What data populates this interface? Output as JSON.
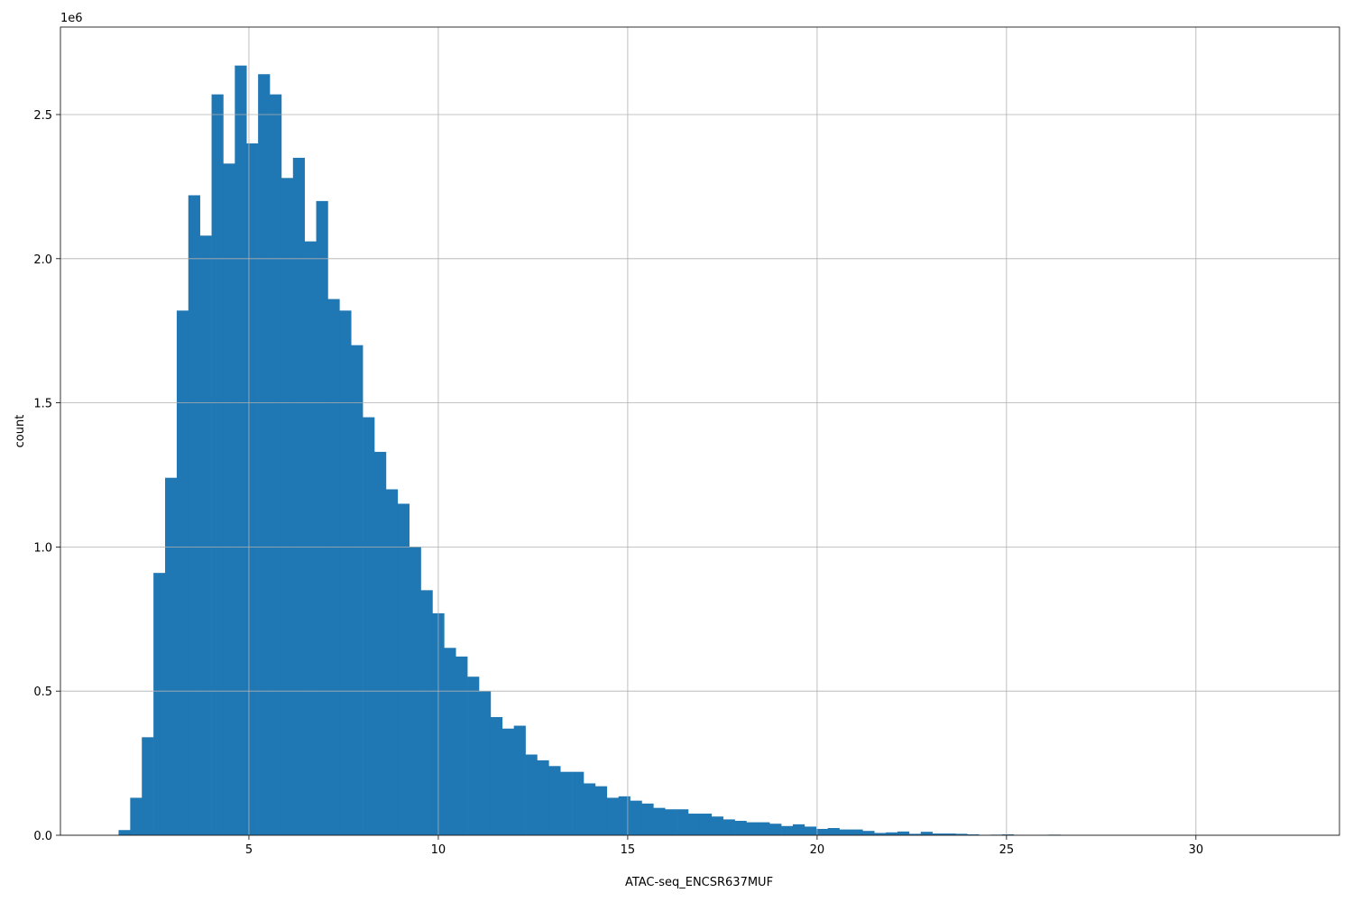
{
  "chart_data": {
    "type": "histogram",
    "xlabel": "ATAC-seq_ENCSR637MUF",
    "ylabel": "count",
    "y_offset_label": "1e6",
    "color": "#1f77b4",
    "grid": true,
    "bins": [
      1.559,
      1.866,
      2.173,
      2.48,
      2.787,
      3.094,
      3.4,
      3.707,
      4.014,
      4.321,
      4.628,
      4.935,
      5.242,
      5.549,
      5.856,
      6.163,
      6.469,
      6.776,
      7.083,
      7.39,
      7.697,
      8.004,
      8.311,
      8.618,
      8.925,
      9.232,
      9.538,
      9.845,
      10.152,
      10.459,
      10.766,
      11.073,
      11.38,
      11.687,
      11.994,
      12.301,
      12.607,
      12.914,
      13.221,
      13.528,
      13.835,
      14.142,
      14.449,
      14.756,
      15.063,
      15.37,
      15.676,
      15.983,
      16.29,
      16.597,
      16.904,
      17.211,
      17.518,
      17.825,
      18.132,
      18.439,
      18.745,
      19.052,
      19.359,
      19.666,
      19.973,
      20.28,
      20.587,
      20.894,
      21.201,
      21.508,
      21.814,
      22.121,
      22.428,
      22.735,
      23.042,
      23.349,
      23.656,
      23.963,
      24.27,
      24.577,
      24.883,
      25.19,
      25.497,
      25.804,
      26.111,
      26.418,
      26.725,
      27.032,
      27.339,
      27.646,
      27.952,
      28.259,
      28.566,
      28.873,
      29.18,
      29.487,
      29.794,
      30.101,
      30.408,
      30.715,
      31.021,
      31.328,
      31.635,
      31.942,
      32.249
    ],
    "counts": [
      18000,
      130000,
      340000,
      910000,
      1240000,
      1820000,
      2220000,
      2080000,
      2570000,
      2330000,
      2670000,
      2400000,
      2640000,
      2570000,
      2280000,
      2350000,
      2060000,
      2200000,
      1860000,
      1820000,
      1700000,
      1450000,
      1330000,
      1200000,
      1150000,
      1000000,
      850000,
      770000,
      650000,
      620000,
      550000,
      500000,
      410000,
      370000,
      380000,
      280000,
      260000,
      240000,
      220000,
      220000,
      180000,
      170000,
      130000,
      135000,
      120000,
      110000,
      95000,
      90000,
      90000,
      75000,
      75000,
      65000,
      55000,
      50000,
      45000,
      45000,
      40000,
      32000,
      38000,
      30000,
      22000,
      25000,
      20000,
      20000,
      15000,
      8000,
      10000,
      13000,
      5000,
      12000,
      6000,
      6000,
      5000,
      3000,
      1000,
      2000,
      3000,
      1000,
      0,
      1000,
      2000,
      0,
      0,
      0,
      0,
      0,
      0,
      0,
      0,
      0,
      0,
      0,
      0,
      0,
      0,
      0,
      0,
      0,
      0,
      0
    ],
    "xlim": [
      0.024,
      33.79
    ],
    "xticks": [
      5,
      10,
      15,
      20,
      25,
      30
    ],
    "ylim": [
      0,
      2803500
    ],
    "yticks": [
      {
        "value": 0,
        "label": "0.0"
      },
      {
        "value": 500000,
        "label": "0.5"
      },
      {
        "value": 1000000,
        "label": "1.0"
      },
      {
        "value": 1500000,
        "label": "1.5"
      },
      {
        "value": 2000000,
        "label": "2.0"
      },
      {
        "value": 2500000,
        "label": "2.5"
      }
    ]
  }
}
